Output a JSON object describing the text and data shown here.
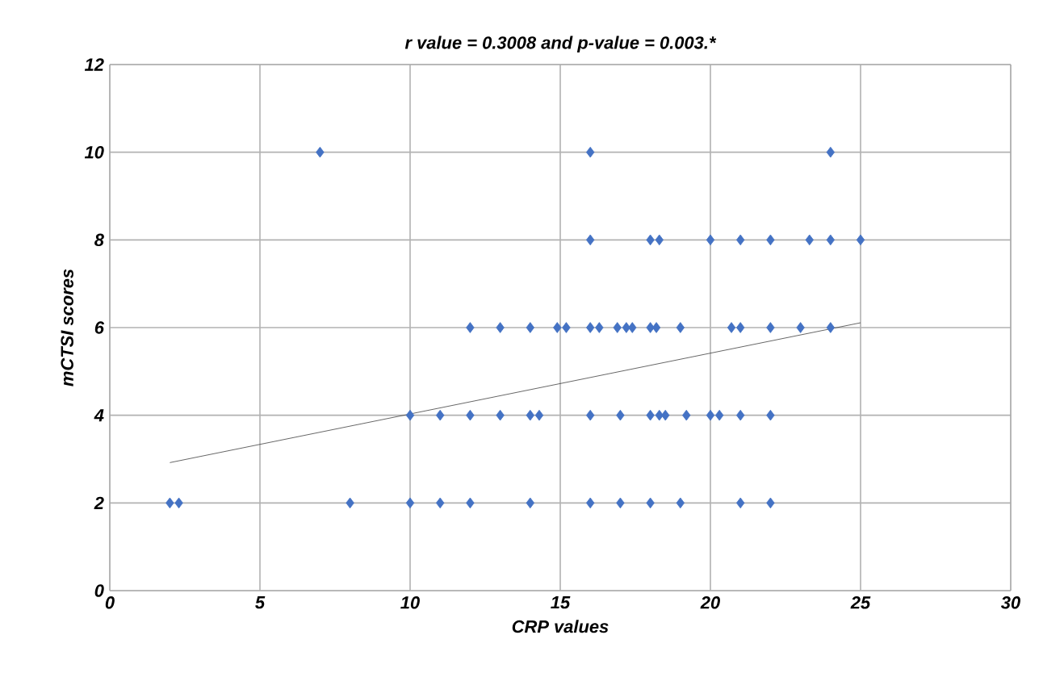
{
  "chart_data": {
    "type": "scatter",
    "title": "r value = 0.3008 and p-value = 0.003.*",
    "xlabel": "CRP values",
    "ylabel": "mCTSI scores",
    "xlim": [
      0,
      30
    ],
    "xticks": [
      0,
      5,
      10,
      15,
      20,
      25,
      30
    ],
    "ylim": [
      0,
      12
    ],
    "yticks": [
      0,
      2,
      4,
      6,
      8,
      10,
      12
    ],
    "grid": true,
    "marker": "diamond",
    "series": [
      {
        "color": "#4472c4",
        "x": [
          2,
          2.3,
          8,
          10,
          11,
          12,
          14,
          16,
          17,
          18,
          19,
          21,
          22,
          10,
          11,
          12,
          13,
          14,
          14.3,
          16,
          17,
          18,
          18.3,
          18.5,
          19.2,
          20,
          20.3,
          21,
          22,
          12,
          13,
          14,
          14.9,
          15.2,
          16,
          16.3,
          16.9,
          17.2,
          17.4,
          18,
          18.2,
          19,
          20.7,
          21,
          22,
          23,
          24,
          16,
          18,
          18.3,
          20,
          21,
          22,
          23.3,
          24,
          25,
          7,
          16,
          24
        ],
        "values": [
          2,
          2,
          2,
          2,
          2,
          2,
          2,
          2,
          2,
          2,
          2,
          2,
          2,
          4,
          4,
          4,
          4,
          4,
          4,
          4,
          4,
          4,
          4,
          4,
          4,
          4,
          4,
          4,
          4,
          6,
          6,
          6,
          6,
          6,
          6,
          6,
          6,
          6,
          6,
          6,
          6,
          6,
          6,
          6,
          6,
          6,
          6,
          8,
          8,
          8,
          8,
          8,
          8,
          8,
          8,
          8,
          10,
          10,
          10
        ]
      },
      {
        "type": "line",
        "color": "#404040",
        "marker": "none",
        "x": [
          2,
          25
        ],
        "values": [
          2.92,
          6.11
        ]
      }
    ]
  }
}
